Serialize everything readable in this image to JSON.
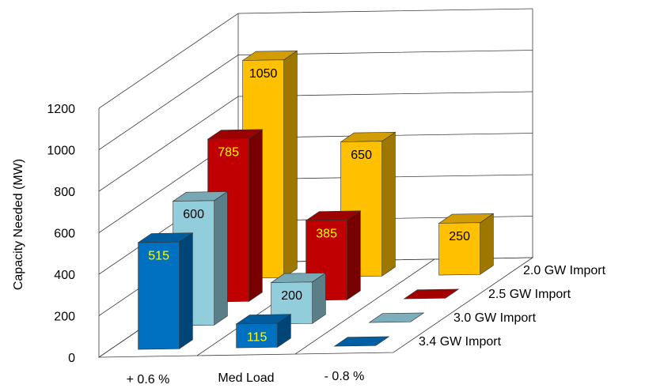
{
  "chart_data": {
    "type": "bar",
    "subtype": "3d-clustered-depth",
    "title": "",
    "ylabel": "Capacity Needed (MW)",
    "xlabel": "",
    "ylim": [
      0,
      1200
    ],
    "yticks": [
      0,
      200,
      400,
      600,
      800,
      1000,
      1200
    ],
    "grid": true,
    "categories": [
      "+ 0.6 %",
      "Med Load",
      "- 0.8 %"
    ],
    "series": [
      {
        "name": "3.4 GW Import",
        "values": [
          515,
          115,
          0
        ],
        "color": "#0070C0",
        "label_color": "#FFFF00"
      },
      {
        "name": "3.0 GW Import",
        "values": [
          600,
          200,
          0
        ],
        "color": "#92CDDC",
        "label_color": "#000000"
      },
      {
        "name": "2.5 GW Import",
        "values": [
          785,
          385,
          0
        ],
        "color": "#C00000",
        "label_color": "#FFFF00"
      },
      {
        "name": "2.0 GW Import",
        "values": [
          1050,
          650,
          250
        ],
        "color": "#FFC000",
        "label_color": "#000000"
      }
    ],
    "data_labels": [
      [
        "515",
        "115",
        ""
      ],
      [
        "600",
        "200",
        ""
      ],
      [
        "785",
        "385",
        ""
      ],
      [
        "1050",
        "650",
        "250"
      ]
    ]
  }
}
